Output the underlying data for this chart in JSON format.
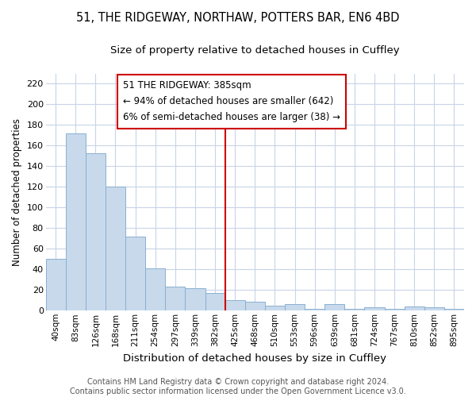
{
  "title1": "51, THE RIDGEWAY, NORTHAW, POTTERS BAR, EN6 4BD",
  "title2": "Size of property relative to detached houses in Cuffley",
  "xlabel": "Distribution of detached houses by size in Cuffley",
  "ylabel": "Number of detached properties",
  "bar_labels": [
    "40sqm",
    "83sqm",
    "126sqm",
    "168sqm",
    "211sqm",
    "254sqm",
    "297sqm",
    "339sqm",
    "382sqm",
    "425sqm",
    "468sqm",
    "510sqm",
    "553sqm",
    "596sqm",
    "639sqm",
    "681sqm",
    "724sqm",
    "767sqm",
    "810sqm",
    "852sqm",
    "895sqm"
  ],
  "bar_values": [
    50,
    172,
    153,
    120,
    72,
    41,
    23,
    22,
    17,
    10,
    9,
    5,
    6,
    2,
    6,
    2,
    3,
    2,
    4,
    3,
    2
  ],
  "bar_color": "#c8d9ec",
  "bar_edge_color": "#8ab0d0",
  "vline_x": 8,
  "vline_color": "#cc0000",
  "annotation_box_text": "51 THE RIDGEWAY: 385sqm\n← 94% of detached houses are smaller (642)\n6% of semi-detached houses are larger (38) →",
  "box_edge_color": "#cc0000",
  "ylim": [
    0,
    230
  ],
  "yticks": [
    0,
    20,
    40,
    60,
    80,
    100,
    120,
    140,
    160,
    180,
    200,
    220
  ],
  "footnote": "Contains HM Land Registry data © Crown copyright and database right 2024.\nContains public sector information licensed under the Open Government Licence v3.0.",
  "background_color": "#ffffff",
  "grid_color": "#c8d4e8",
  "title1_fontsize": 10.5,
  "title2_fontsize": 9.5,
  "annotation_fontsize": 8.5,
  "ylabel_fontsize": 8.5,
  "xlabel_fontsize": 9.5,
  "footnote_fontsize": 7.0
}
